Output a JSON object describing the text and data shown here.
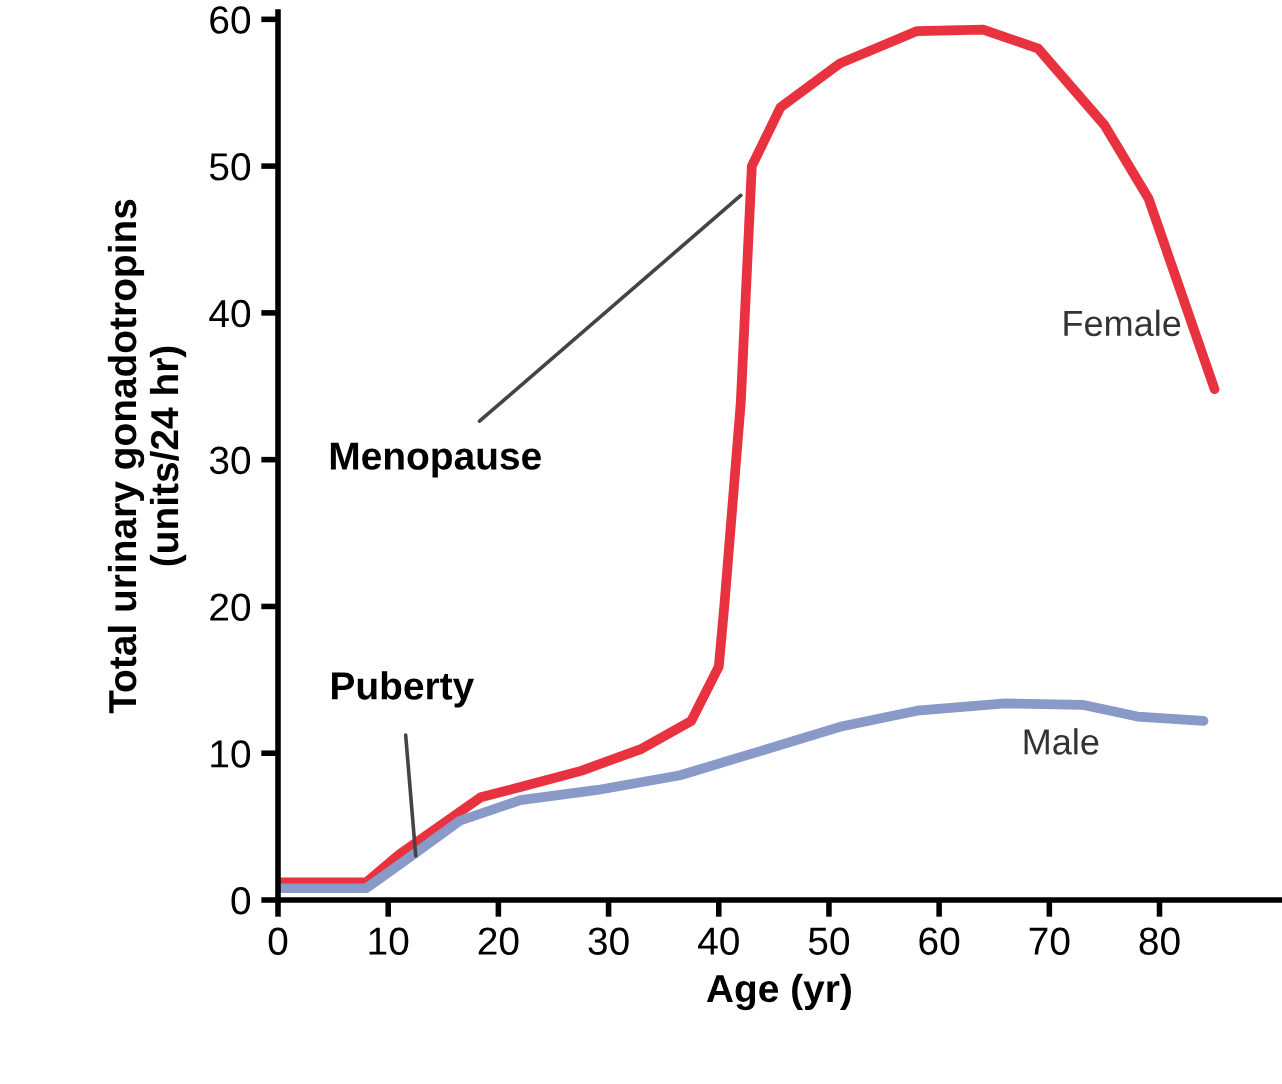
{
  "chart_data": {
    "type": "line",
    "xlabel": "Age (yr)",
    "ylabel": "Total urinary gonadotropins\n(units/24 hr)",
    "xlim": [
      0,
      91
    ],
    "xticks": [
      0,
      10,
      20,
      30,
      40,
      50,
      60,
      70,
      80
    ],
    "ylim": [
      0,
      60.5
    ],
    "yticks": [
      0,
      10,
      20,
      30,
      40,
      50,
      60
    ],
    "grid": false,
    "legend": false,
    "marker": "none",
    "line_style": "solid",
    "series": [
      {
        "name": "Female",
        "color": "#e8323f",
        "x": [
          0,
          8,
          11,
          18.4,
          22,
          27.5,
          33,
          37.5,
          40,
          40.5,
          42,
          43,
          45.6,
          51,
          58,
          64,
          69,
          75,
          79,
          85
        ],
        "values": [
          1.2,
          1.2,
          3.1,
          7,
          7.7,
          8.8,
          10.3,
          12.2,
          15.9,
          20,
          33.9,
          50,
          54,
          57,
          59.2,
          59.3,
          58,
          52.8,
          47.8,
          34.8
        ]
      },
      {
        "name": "Male",
        "color": "#8a9ac8",
        "x": [
          0,
          8,
          11,
          16.5,
          22,
          29,
          36.5,
          44,
          51,
          58,
          66,
          73,
          78,
          84
        ],
        "values": [
          0.8,
          0.8,
          2.4,
          5.4,
          6.8,
          7.5,
          8.5,
          10.2,
          11.8,
          12.9,
          13.4,
          13.3,
          12.5,
          12.2
        ]
      }
    ],
    "annotations": [
      {
        "text": "Menopause",
        "x": 42,
        "y": 48
      },
      {
        "text": "Puberty",
        "x": 12.5,
        "y": 3
      }
    ]
  }
}
